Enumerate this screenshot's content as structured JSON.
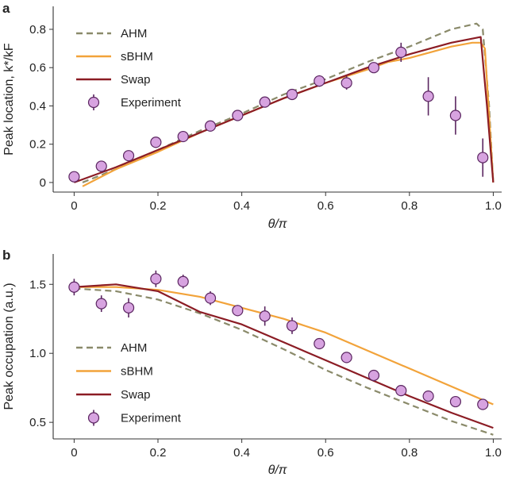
{
  "colors": {
    "AHM": "#8a8a6a",
    "sBHM": "#f2a33a",
    "Swap": "#8b1c24",
    "Experiment_fill": "#d7a3e0",
    "Experiment_edge": "#5a2560",
    "axis": "#333333"
  },
  "chart_data": [
    {
      "type": "line",
      "panel": "a",
      "xlabel": "θ/π",
      "ylabel": "Peak location, k*/kF",
      "xlim": [
        -0.05,
        1.02
      ],
      "ylim": [
        -0.05,
        0.92
      ],
      "xticks": [
        0,
        0.2,
        0.4,
        0.6,
        0.8,
        1.0
      ],
      "xtick_labels": [
        "0",
        "0.2",
        "0.4",
        "0.6",
        "0.8",
        "1.0"
      ],
      "yticks": [
        0,
        0.2,
        0.4,
        0.6,
        0.8
      ],
      "ytick_labels": [
        "0",
        "0.2",
        "0.4",
        "0.6",
        "0.8"
      ],
      "grid": false,
      "legend": {
        "placement": "top-left",
        "entries": [
          "AHM",
          "sBHM",
          "Swap",
          "Experiment"
        ]
      },
      "series": [
        {
          "name": "AHM",
          "style": "dashed",
          "x": [
            0.02,
            0.1,
            0.2,
            0.3,
            0.4,
            0.5,
            0.6,
            0.7,
            0.8,
            0.9,
            0.96,
            0.975,
            0.99,
            1.0
          ],
          "y": [
            0.0,
            0.07,
            0.17,
            0.27,
            0.36,
            0.46,
            0.54,
            0.63,
            0.71,
            0.8,
            0.83,
            0.8,
            0.4,
            0.0
          ]
        },
        {
          "name": "sBHM",
          "style": "solid",
          "x": [
            0.02,
            0.1,
            0.2,
            0.3,
            0.4,
            0.5,
            0.6,
            0.7,
            0.75,
            0.8,
            0.85,
            0.9,
            0.95,
            0.97,
            0.98,
            0.99,
            1.0
          ],
          "y": [
            -0.02,
            0.07,
            0.16,
            0.26,
            0.35,
            0.44,
            0.52,
            0.59,
            0.63,
            0.65,
            0.68,
            0.71,
            0.73,
            0.73,
            0.7,
            0.35,
            0.0
          ]
        },
        {
          "name": "Swap",
          "style": "solid",
          "x": [
            0.0,
            0.1,
            0.2,
            0.3,
            0.4,
            0.5,
            0.6,
            0.7,
            0.8,
            0.9,
            0.97,
            0.985,
            1.0
          ],
          "y": [
            0.0,
            0.08,
            0.17,
            0.26,
            0.35,
            0.44,
            0.52,
            0.6,
            0.67,
            0.73,
            0.76,
            0.4,
            0.0
          ]
        },
        {
          "name": "Experiment",
          "style": "markers",
          "x": [
            0.0,
            0.065,
            0.13,
            0.195,
            0.26,
            0.325,
            0.39,
            0.455,
            0.52,
            0.585,
            0.65,
            0.715,
            0.78,
            0.845,
            0.91,
            0.975
          ],
          "y": [
            0.03,
            0.085,
            0.14,
            0.21,
            0.24,
            0.295,
            0.35,
            0.42,
            0.46,
            0.53,
            0.52,
            0.6,
            0.68,
            0.45,
            0.35,
            0.13
          ],
          "yerr": [
            0.0,
            0.0,
            0.0,
            0.0,
            0.0,
            0.0,
            0.0,
            0.0,
            0.0,
            0.03,
            0.035,
            0.0,
            0.05,
            0.1,
            0.1,
            0.1
          ]
        }
      ]
    },
    {
      "type": "line",
      "panel": "b",
      "xlabel": "θ/π",
      "ylabel": "Peak occupation (a.u.)",
      "xlim": [
        -0.05,
        1.02
      ],
      "ylim": [
        0.38,
        1.72
      ],
      "xticks": [
        0,
        0.2,
        0.4,
        0.6,
        0.8,
        1.0
      ],
      "xtick_labels": [
        "0",
        "0.2",
        "0.4",
        "0.6",
        "0.8",
        "1.0"
      ],
      "yticks": [
        0.5,
        1.0,
        1.5
      ],
      "ytick_labels": [
        "0.5",
        "1.0",
        "1.5"
      ],
      "grid": false,
      "legend": {
        "placement": "bottom-left",
        "entries": [
          "AHM",
          "sBHM",
          "Swap",
          "Experiment"
        ]
      },
      "series": [
        {
          "name": "AHM",
          "style": "dashed",
          "x": [
            0.0,
            0.1,
            0.2,
            0.3,
            0.4,
            0.5,
            0.6,
            0.7,
            0.8,
            0.9,
            1.0
          ],
          "y": [
            1.47,
            1.45,
            1.39,
            1.29,
            1.17,
            1.03,
            0.88,
            0.75,
            0.63,
            0.51,
            0.41
          ]
        },
        {
          "name": "sBHM",
          "style": "solid",
          "x": [
            0.0,
            0.1,
            0.2,
            0.3,
            0.4,
            0.5,
            0.6,
            0.7,
            0.8,
            0.9,
            1.0
          ],
          "y": [
            1.48,
            1.48,
            1.46,
            1.41,
            1.33,
            1.25,
            1.15,
            1.02,
            0.89,
            0.76,
            0.63
          ]
        },
        {
          "name": "Swap",
          "style": "solid",
          "x": [
            0.0,
            0.1,
            0.2,
            0.3,
            0.4,
            0.5,
            0.6,
            0.7,
            0.8,
            0.9,
            1.0
          ],
          "y": [
            1.48,
            1.5,
            1.45,
            1.3,
            1.21,
            1.08,
            0.95,
            0.82,
            0.69,
            0.57,
            0.46
          ]
        },
        {
          "name": "Experiment",
          "style": "markers",
          "x": [
            0.0,
            0.065,
            0.13,
            0.195,
            0.26,
            0.325,
            0.39,
            0.455,
            0.52,
            0.585,
            0.65,
            0.715,
            0.78,
            0.845,
            0.91,
            0.975
          ],
          "y": [
            1.48,
            1.36,
            1.33,
            1.54,
            1.52,
            1.4,
            1.31,
            1.27,
            1.2,
            1.07,
            0.97,
            0.84,
            0.73,
            0.69,
            0.65,
            0.63
          ],
          "yerr": [
            0.06,
            0.06,
            0.07,
            0.06,
            0.05,
            0.05,
            0.04,
            0.07,
            0.06,
            0.03,
            0.0,
            0.0,
            0.0,
            0.0,
            0.0,
            0.0
          ]
        }
      ]
    }
  ]
}
